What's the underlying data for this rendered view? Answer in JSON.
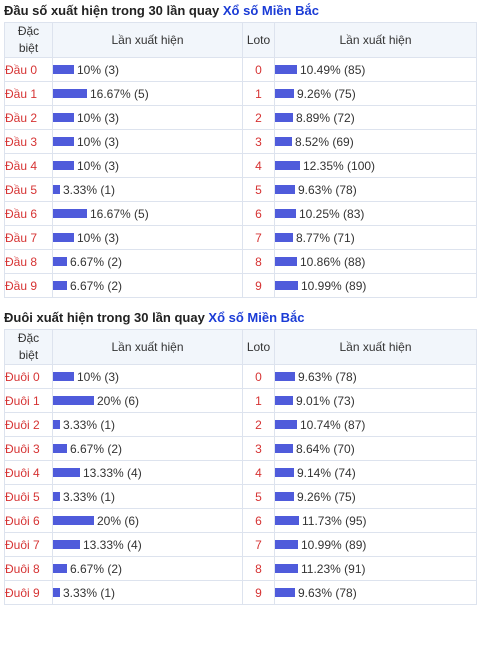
{
  "colors": {
    "bar": "#4f5bdb",
    "label": "#d63333",
    "link": "#1a3bd6"
  },
  "headers": {
    "dac_biet_1": "Đặc",
    "dac_biet_2": "biệt",
    "lan_xuat_hien": "Lần xuất hiện",
    "loto": "Loto"
  },
  "dau": {
    "title_prefix": "Đầu số xuất hiện trong 30 lần quay ",
    "title_link": "Xổ số Miền Bắc",
    "rows": [
      {
        "label": "Đầu 0",
        "freq": "10% (3)",
        "pct": 10,
        "loto": "0",
        "loto_freq": "10.49% (85)",
        "loto_pct": 10.49
      },
      {
        "label": "Đầu 1",
        "freq": "16.67% (5)",
        "pct": 16.67,
        "loto": "1",
        "loto_freq": "9.26% (75)",
        "loto_pct": 9.26
      },
      {
        "label": "Đầu 2",
        "freq": "10% (3)",
        "pct": 10,
        "loto": "2",
        "loto_freq": "8.89% (72)",
        "loto_pct": 8.89
      },
      {
        "label": "Đầu 3",
        "freq": "10% (3)",
        "pct": 10,
        "loto": "3",
        "loto_freq": "8.52% (69)",
        "loto_pct": 8.52
      },
      {
        "label": "Đầu 4",
        "freq": "10% (3)",
        "pct": 10,
        "loto": "4",
        "loto_freq": "12.35% (100)",
        "loto_pct": 12.35
      },
      {
        "label": "Đầu 5",
        "freq": "3.33% (1)",
        "pct": 3.33,
        "loto": "5",
        "loto_freq": "9.63% (78)",
        "loto_pct": 9.63
      },
      {
        "label": "Đầu 6",
        "freq": "16.67% (5)",
        "pct": 16.67,
        "loto": "6",
        "loto_freq": "10.25% (83)",
        "loto_pct": 10.25
      },
      {
        "label": "Đầu 7",
        "freq": "10% (3)",
        "pct": 10,
        "loto": "7",
        "loto_freq": "8.77% (71)",
        "loto_pct": 8.77
      },
      {
        "label": "Đầu 8",
        "freq": "6.67% (2)",
        "pct": 6.67,
        "loto": "8",
        "loto_freq": "10.86% (88)",
        "loto_pct": 10.86
      },
      {
        "label": "Đầu 9",
        "freq": "6.67% (2)",
        "pct": 6.67,
        "loto": "9",
        "loto_freq": "10.99% (89)",
        "loto_pct": 10.99
      }
    ]
  },
  "duoi": {
    "title_prefix": "Đuôi xuất hiện trong 30 lần quay ",
    "title_link": "Xổ số Miền Bắc",
    "rows": [
      {
        "label": "Đuôi 0",
        "freq": "10% (3)",
        "pct": 10,
        "loto": "0",
        "loto_freq": "9.63% (78)",
        "loto_pct": 9.63
      },
      {
        "label": "Đuôi 1",
        "freq": "20% (6)",
        "pct": 20,
        "loto": "1",
        "loto_freq": "9.01% (73)",
        "loto_pct": 9.01
      },
      {
        "label": "Đuôi 2",
        "freq": "3.33% (1)",
        "pct": 3.33,
        "loto": "2",
        "loto_freq": "10.74% (87)",
        "loto_pct": 10.74
      },
      {
        "label": "Đuôi 3",
        "freq": "6.67% (2)",
        "pct": 6.67,
        "loto": "3",
        "loto_freq": "8.64% (70)",
        "loto_pct": 8.64
      },
      {
        "label": "Đuôi 4",
        "freq": "13.33% (4)",
        "pct": 13.33,
        "loto": "4",
        "loto_freq": "9.14% (74)",
        "loto_pct": 9.14
      },
      {
        "label": "Đuôi 5",
        "freq": "3.33% (1)",
        "pct": 3.33,
        "loto": "5",
        "loto_freq": "9.26% (75)",
        "loto_pct": 9.26
      },
      {
        "label": "Đuôi 6",
        "freq": "20% (6)",
        "pct": 20,
        "loto": "6",
        "loto_freq": "11.73% (95)",
        "loto_pct": 11.73
      },
      {
        "label": "Đuôi 7",
        "freq": "13.33% (4)",
        "pct": 13.33,
        "loto": "7",
        "loto_freq": "10.99% (89)",
        "loto_pct": 10.99
      },
      {
        "label": "Đuôi 8",
        "freq": "6.67% (2)",
        "pct": 6.67,
        "loto": "8",
        "loto_freq": "11.23% (91)",
        "loto_pct": 11.23
      },
      {
        "label": "Đuôi 9",
        "freq": "3.33% (1)",
        "pct": 3.33,
        "loto": "9",
        "loto_freq": "9.63% (78)",
        "loto_pct": 9.63
      }
    ]
  }
}
